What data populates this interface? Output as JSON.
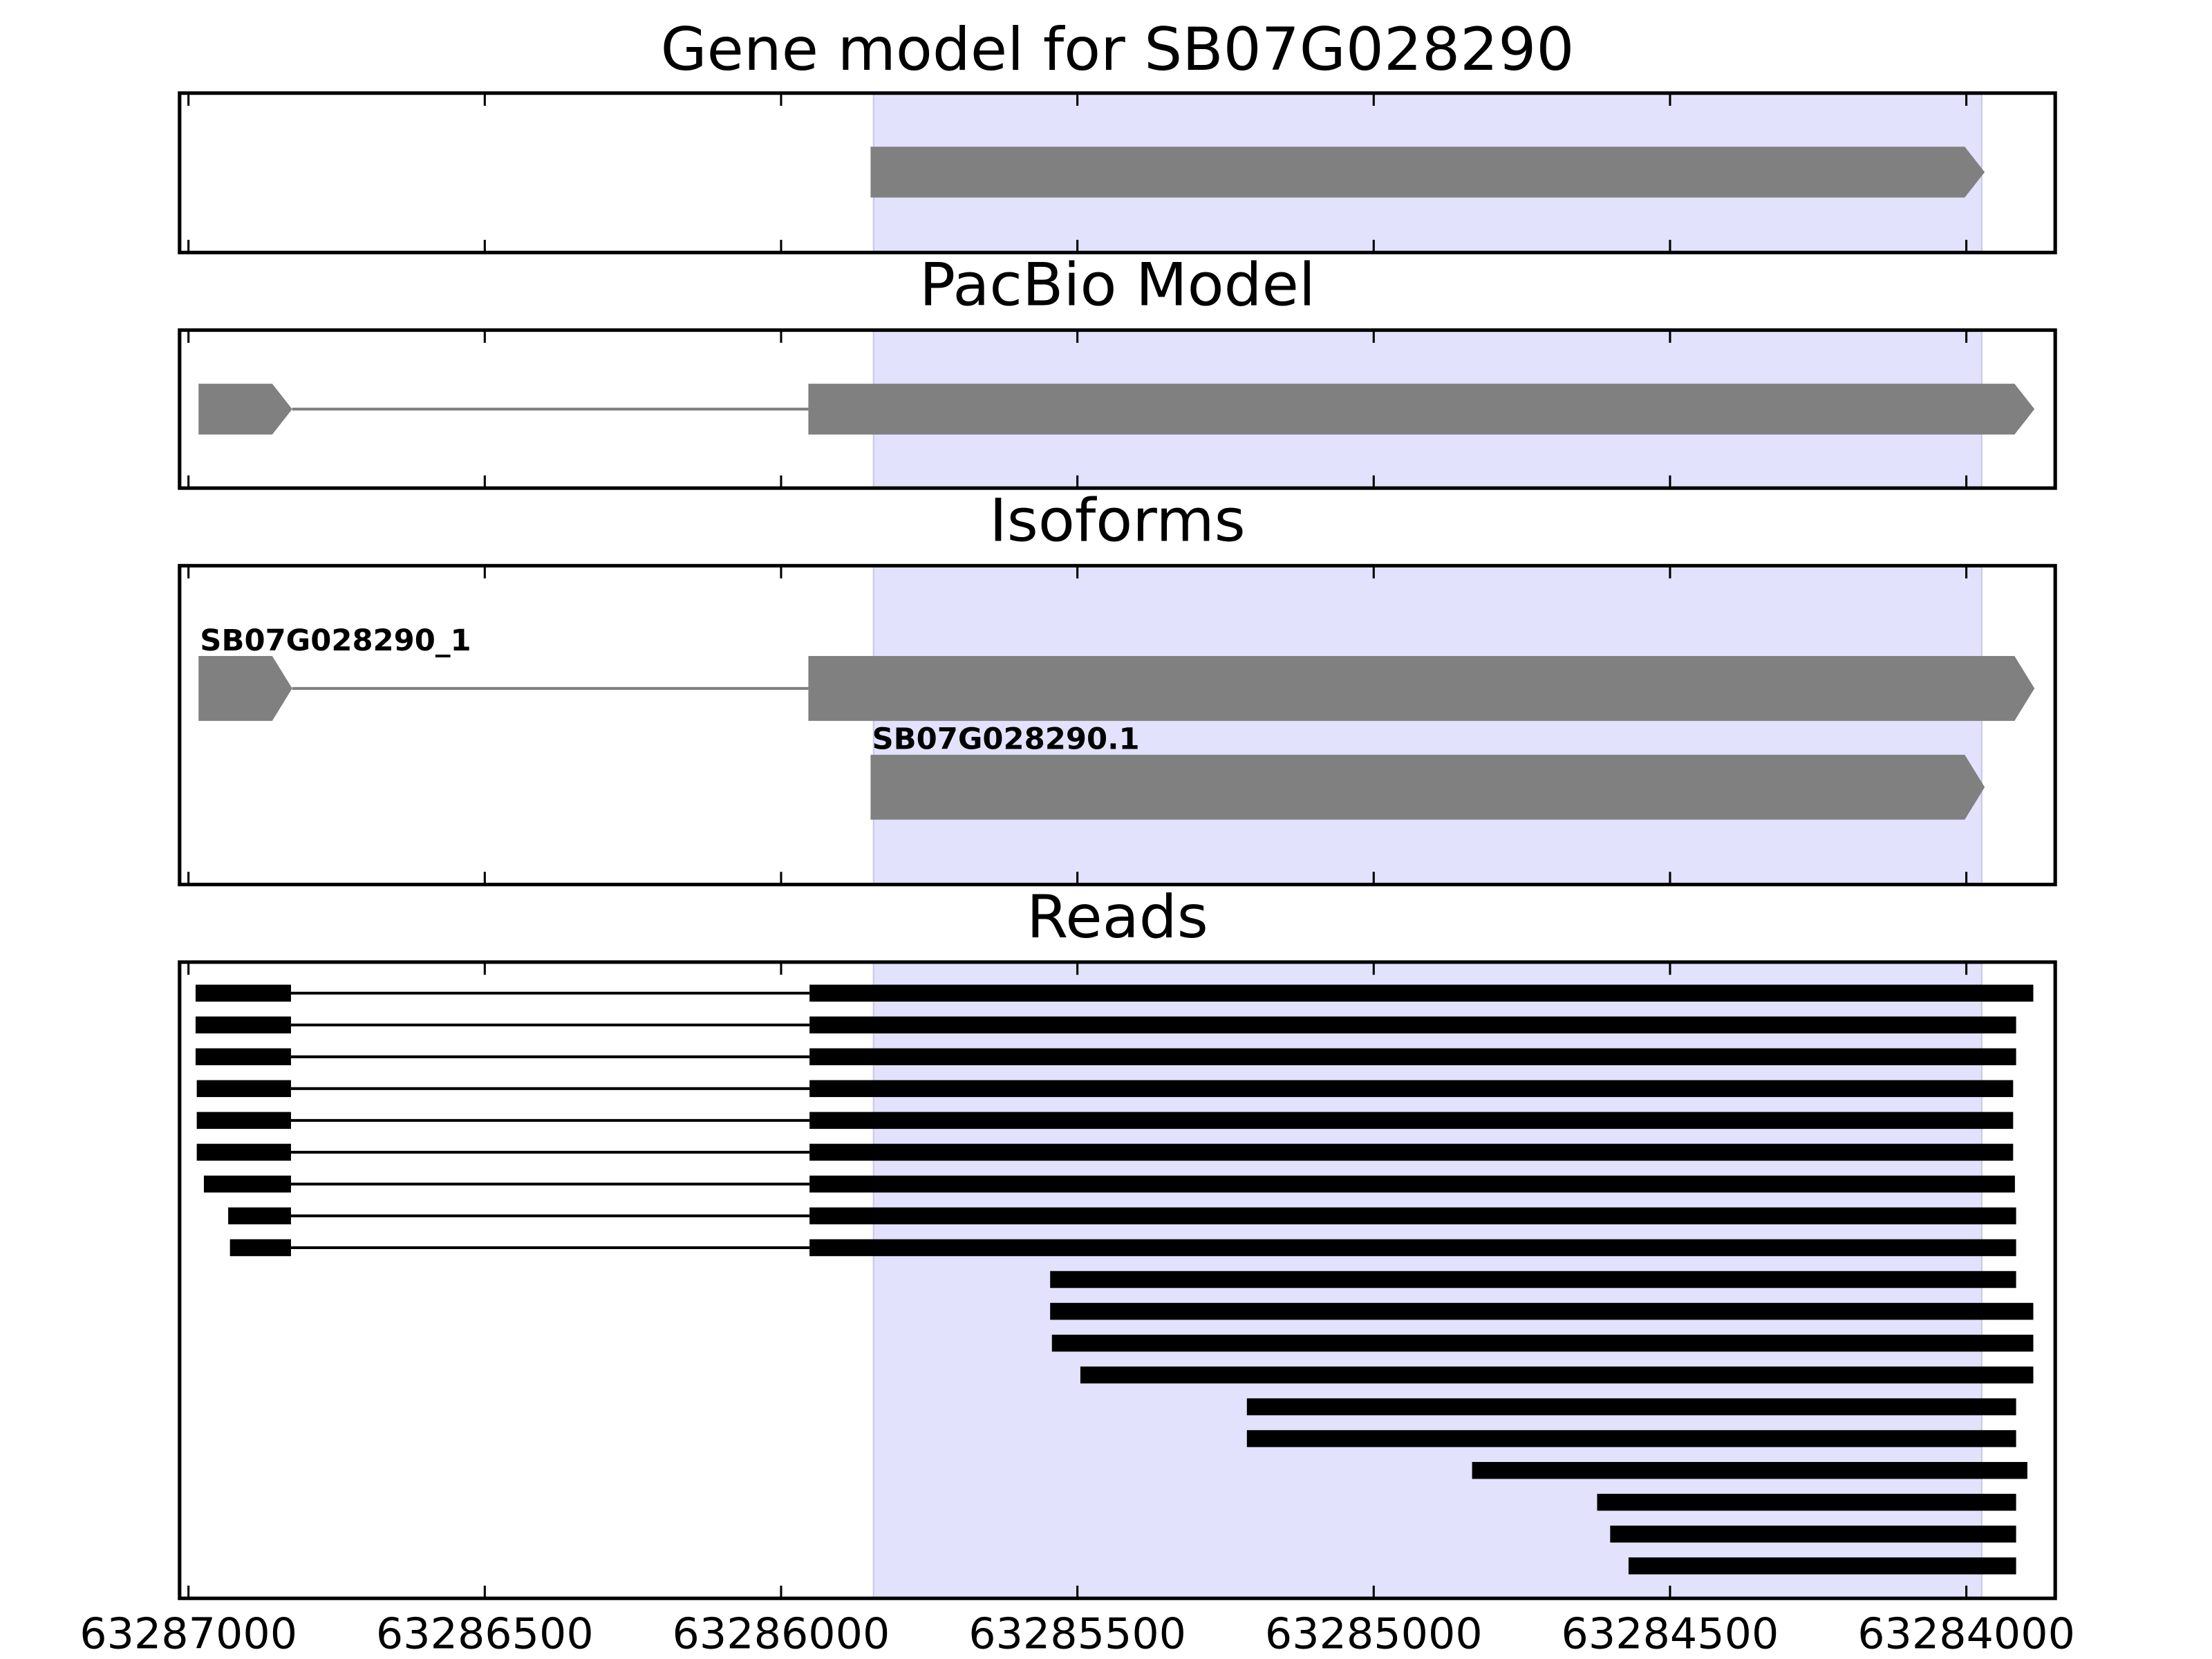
{
  "chart_data": [
    {
      "type": "gene",
      "title": "Gene model for SB07G028290",
      "xlim": [
        63287015,
        63283850
      ],
      "xticks": [
        63287000,
        63286500,
        63286000,
        63285500,
        63285000,
        63284500,
        63284000
      ],
      "highlight": [
        63285844,
        63283974
      ],
      "highlight_color": "#e2e2fc",
      "color": "#808080",
      "features": [
        {
          "exons": [
            [
              63285849,
              63283969
            ]
          ]
        }
      ]
    },
    {
      "type": "gene",
      "title": "PacBio Model",
      "xlim": [
        63287015,
        63283850
      ],
      "xticks": [
        63287000,
        63286500,
        63286000,
        63285500,
        63285000,
        63284500,
        63284000
      ],
      "highlight": [
        63285844,
        63283974
      ],
      "highlight_color": "#e2e2fc",
      "color": "#808080",
      "features": [
        {
          "exons": [
            [
              63286983,
              63286825
            ],
            [
              63285954,
              63283885
            ]
          ]
        }
      ]
    },
    {
      "type": "gene",
      "title": "Isoforms",
      "xlim": [
        63287015,
        63283850
      ],
      "xticks": [
        63287000,
        63286500,
        63286000,
        63285500,
        63285000,
        63284500,
        63284000
      ],
      "highlight": [
        63285844,
        63283974
      ],
      "highlight_color": "#e2e2fc",
      "color": "#808080",
      "features": [
        {
          "name": "SB07G028290_1",
          "exons": [
            [
              63286983,
              63286825
            ],
            [
              63285954,
              63283885
            ]
          ]
        },
        {
          "name": "SB07G028290.1",
          "exons": [
            [
              63285849,
              63283969
            ]
          ]
        }
      ]
    },
    {
      "type": "reads",
      "title": "Reads",
      "xlim": [
        63287015,
        63283850
      ],
      "xticks": [
        63287000,
        63286500,
        63286000,
        63285500,
        63285000,
        63284500,
        63284000
      ],
      "highlight": [
        63285844,
        63283974
      ],
      "highlight_color": "#e2e2fc",
      "color": "#000000",
      "tick_labels": true,
      "features": [
        {
          "exons": [
            [
              63286988,
              63286827
            ],
            [
              63285952,
              63283887
            ]
          ]
        },
        {
          "exons": [
            [
              63286988,
              63286827
            ],
            [
              63285952,
              63283916
            ]
          ]
        },
        {
          "exons": [
            [
              63286988,
              63286827
            ],
            [
              63285952,
              63283916
            ]
          ]
        },
        {
          "exons": [
            [
              63286986,
              63286827
            ],
            [
              63285952,
              63283921
            ]
          ]
        },
        {
          "exons": [
            [
              63286986,
              63286827
            ],
            [
              63285952,
              63283921
            ]
          ]
        },
        {
          "exons": [
            [
              63286986,
              63286827
            ],
            [
              63285952,
              63283921
            ]
          ]
        },
        {
          "exons": [
            [
              63286974,
              63286827
            ],
            [
              63285952,
              63283918
            ]
          ]
        },
        {
          "exons": [
            [
              63286933,
              63286827
            ],
            [
              63285952,
              63283916
            ]
          ]
        },
        {
          "exons": [
            [
              63286930,
              63286827
            ],
            [
              63285952,
              63283916
            ]
          ]
        },
        {
          "exons": [
            [
              63285546,
              63283916
            ]
          ]
        },
        {
          "exons": [
            [
              63285546,
              63283887
            ]
          ]
        },
        {
          "exons": [
            [
              63285543,
              63283887
            ]
          ]
        },
        {
          "exons": [
            [
              63285495,
              63283887
            ]
          ]
        },
        {
          "exons": [
            [
              63285214,
              63283916
            ]
          ]
        },
        {
          "exons": [
            [
              63285214,
              63283916
            ]
          ]
        },
        {
          "exons": [
            [
              63284834,
              63283897
            ]
          ]
        },
        {
          "exons": [
            [
              63284623,
              63283916
            ]
          ]
        },
        {
          "exons": [
            [
              63284601,
              63283916
            ]
          ]
        },
        {
          "exons": [
            [
              63284570,
              63283916
            ]
          ]
        }
      ]
    }
  ]
}
